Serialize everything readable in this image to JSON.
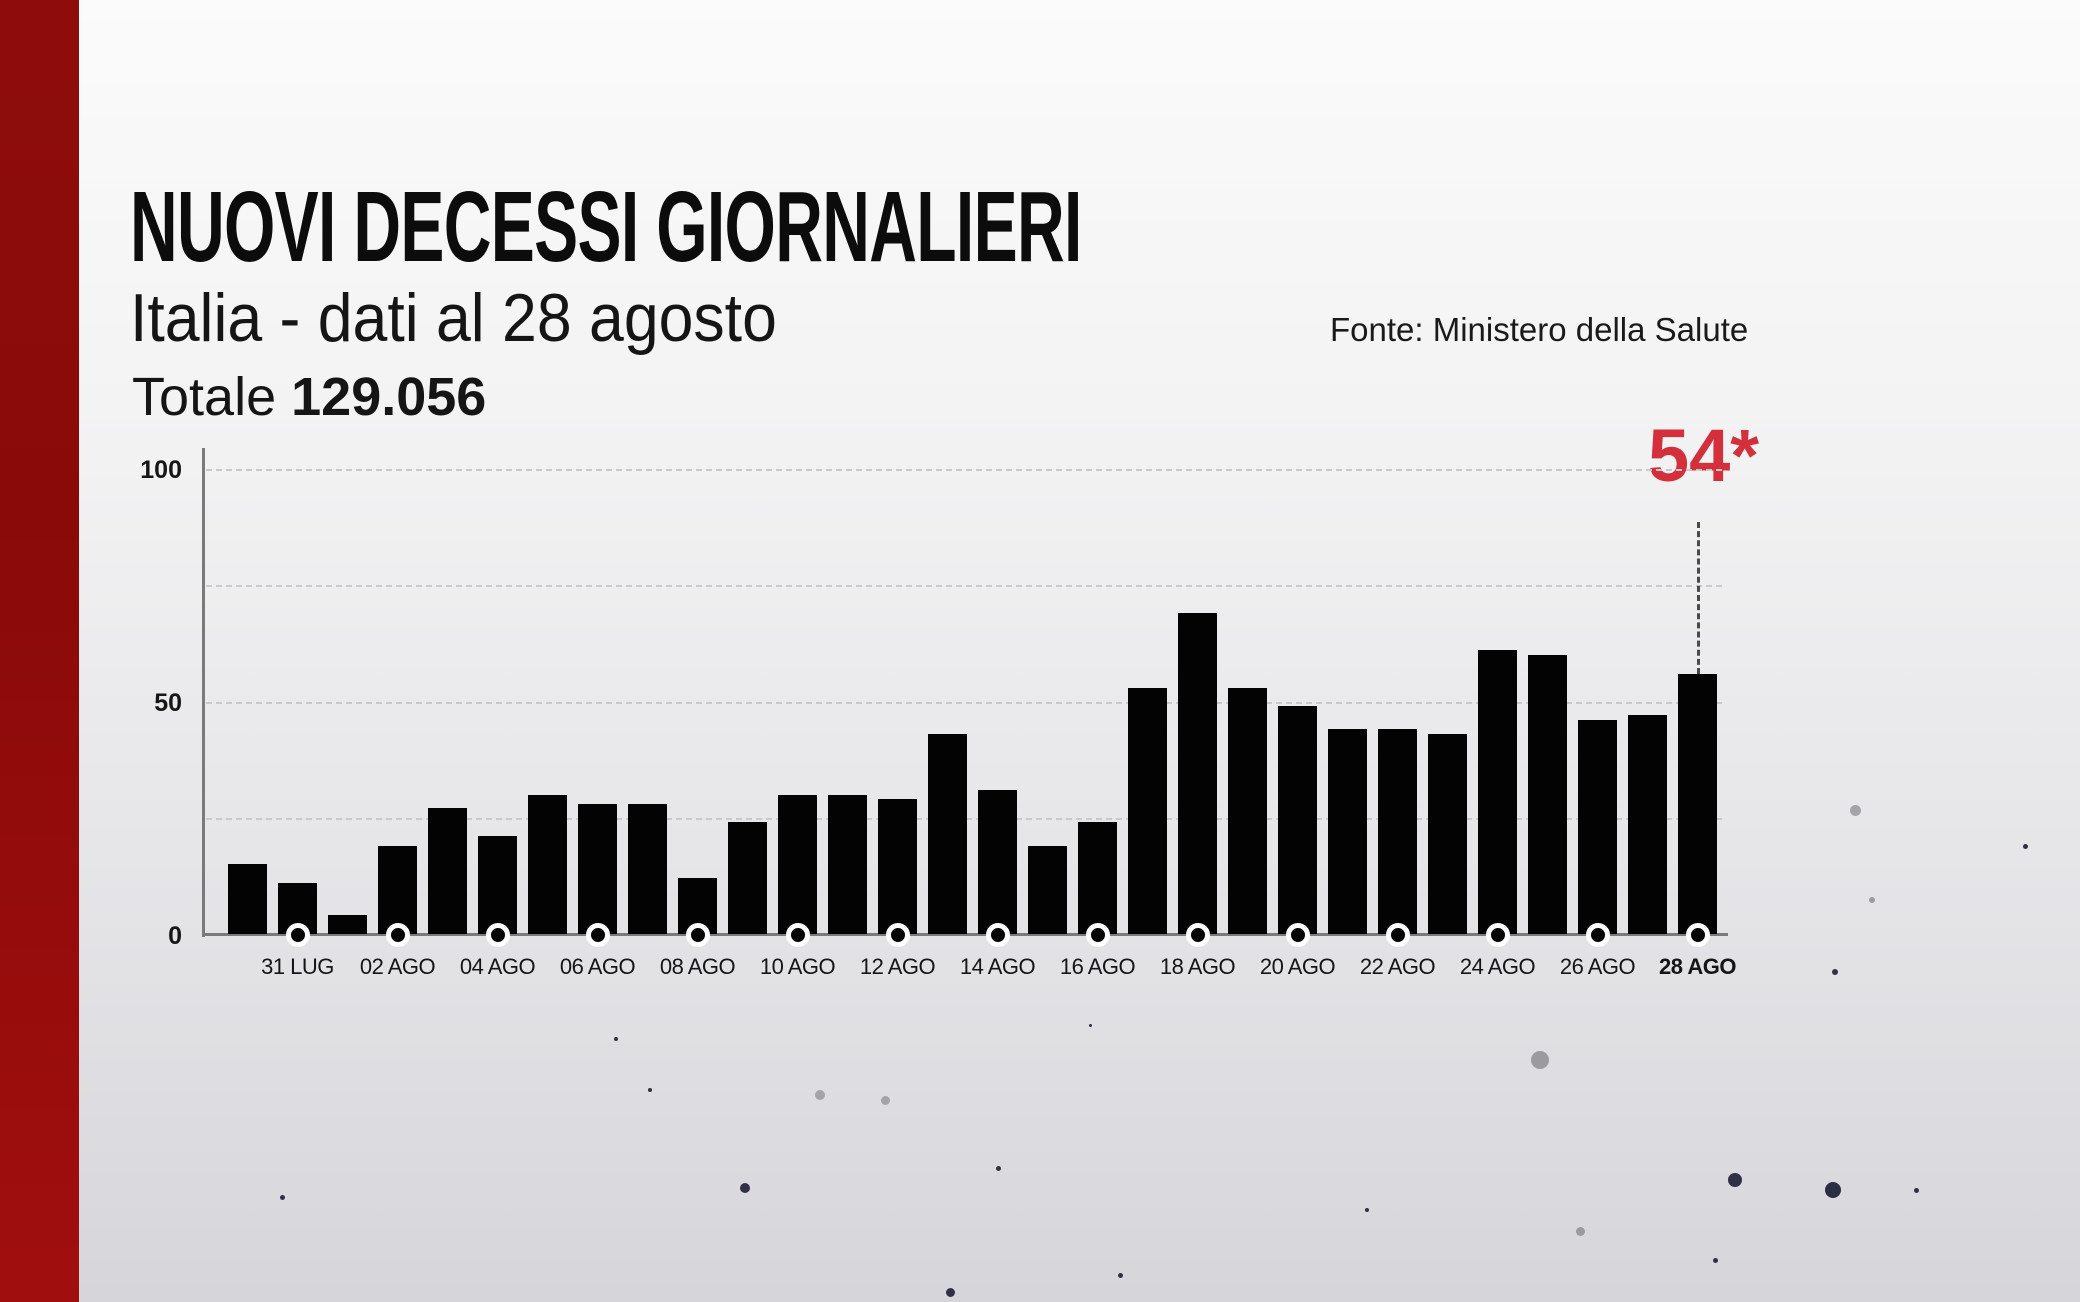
{
  "header": {
    "title": "NUOVI DECESSI GIORNALIERI",
    "subtitle": "Italia - dati al 28 agosto",
    "total_label": "Totale",
    "total_value": "129.056",
    "source": "Fonte: Ministero della Salute"
  },
  "highlight": {
    "label": "54*",
    "color": "#d3303c"
  },
  "colors": {
    "accent_band": "#8a0a0a",
    "bars": "#030303",
    "highlight": "#d3303c"
  },
  "chart_data": {
    "type": "bar",
    "title": "NUOVI DECESSI GIORNALIERI",
    "subtitle": "Italia - dati al 28 agosto",
    "annotation": "54*",
    "source": "Fonte: Ministero della Salute",
    "xlabel": "",
    "ylabel": "",
    "ylim": [
      0,
      100
    ],
    "yticks": [
      "100",
      "50",
      "0"
    ],
    "gridlines": [
      25,
      50,
      75,
      100
    ],
    "categories": [
      "30 LUG",
      "31 LUG",
      "01 AGO",
      "02 AGO",
      "03 AGO",
      "04 AGO",
      "05 AGO",
      "06 AGO",
      "07 AGO",
      "08 AGO",
      "09 AGO",
      "10 AGO",
      "11 AGO",
      "12 AGO",
      "13 AGO",
      "14 AGO",
      "15 AGO",
      "16 AGO",
      "17 AGO",
      "18 AGO",
      "19 AGO",
      "20 AGO",
      "21 AGO",
      "22 AGO",
      "23 AGO",
      "24 AGO",
      "25 AGO",
      "26 AGO",
      "27 AGO",
      "28 AGO"
    ],
    "values": [
      15,
      11,
      4,
      19,
      27,
      21,
      30,
      28,
      28,
      12,
      24,
      30,
      30,
      29,
      43,
      31,
      19,
      24,
      53,
      69,
      53,
      49,
      44,
      44,
      43,
      61,
      60,
      46,
      47,
      54
    ],
    "tick_labels": [
      "31 LUG",
      "02 AGO",
      "04 AGO",
      "06 AGO",
      "08 AGO",
      "10 AGO",
      "12 AGO",
      "14 AGO",
      "16 AGO",
      "18 AGO",
      "20 AGO",
      "22 AGO",
      "24 AGO",
      "26 AGO",
      "28 AGO"
    ],
    "highlighted_tick": "28 AGO",
    "legend": "none"
  }
}
